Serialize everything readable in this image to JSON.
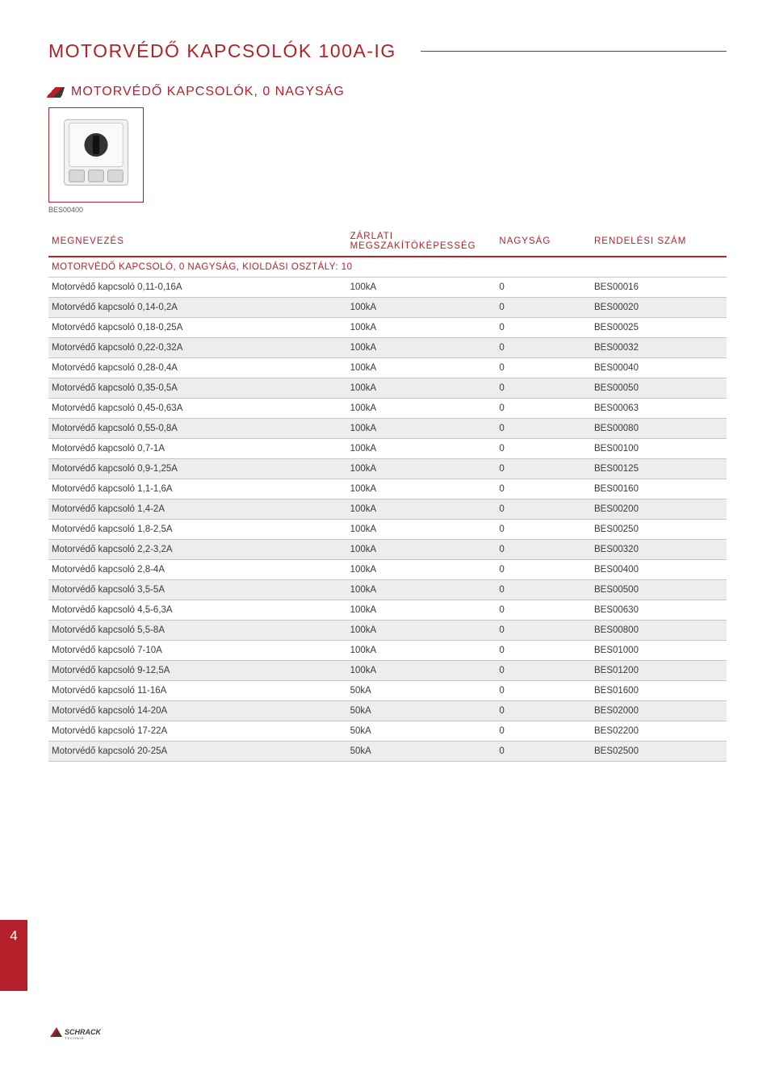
{
  "page": {
    "title": "MOTORVÉDŐ KAPCSOLÓK 100A-IG",
    "section_title": "MOTORVÉDŐ KAPCSOLÓK, 0 NAGYSÁG",
    "product_caption": "BES00400",
    "page_number": "4",
    "footer_brand": "SCHRACK",
    "footer_sub": "TECHNIK"
  },
  "table": {
    "headers": {
      "name": "MEGNEVEZÉS",
      "capacity": "ZÁRLATI MEGSZAKÍTÓKÉPESSÉG",
      "size": "NAGYSÁG",
      "order": "RENDELÉSI SZÁM"
    },
    "subheader": "MOTORVÉDŐ KAPCSOLÓ, 0 NAGYSÁG, KIOLDÁSI OSZTÁLY: 10",
    "rows": [
      {
        "name": "Motorvédő kapcsoló  0,11-0,16A",
        "capacity": "100kA",
        "size": "0",
        "order": "BES00016",
        "shaded": false
      },
      {
        "name": "Motorvédő kapcsoló 0,14-0,2A",
        "capacity": "100kA",
        "size": "0",
        "order": "BES00020",
        "shaded": true
      },
      {
        "name": "Motorvédő kapcsoló 0,18-0,25A",
        "capacity": "100kA",
        "size": "0",
        "order": "BES00025",
        "shaded": false
      },
      {
        "name": "Motorvédő kapcsoló 0,22-0,32A",
        "capacity": "100kA",
        "size": "0",
        "order": "BES00032",
        "shaded": true
      },
      {
        "name": "Motorvédő kapcsoló 0,28-0,4A",
        "capacity": "100kA",
        "size": "0",
        "order": "BES00040",
        "shaded": false
      },
      {
        "name": "Motorvédő kapcsoló 0,35-0,5A",
        "capacity": "100kA",
        "size": "0",
        "order": "BES00050",
        "shaded": true
      },
      {
        "name": "Motorvédő kapcsoló 0,45-0,63A",
        "capacity": "100kA",
        "size": "0",
        "order": "BES00063",
        "shaded": false
      },
      {
        "name": "Motorvédő kapcsoló 0,55-0,8A",
        "capacity": "100kA",
        "size": "0",
        "order": "BES00080",
        "shaded": true
      },
      {
        "name": "Motorvédő kapcsoló 0,7-1A",
        "capacity": "100kA",
        "size": "0",
        "order": "BES00100",
        "shaded": false
      },
      {
        "name": "Motorvédő kapcsoló 0,9-1,25A",
        "capacity": "100kA",
        "size": "0",
        "order": "BES00125",
        "shaded": true
      },
      {
        "name": "Motorvédő kapcsoló 1,1-1,6A",
        "capacity": "100kA",
        "size": "0",
        "order": "BES00160",
        "shaded": false
      },
      {
        "name": "Motorvédő kapcsoló 1,4-2A",
        "capacity": "100kA",
        "size": "0",
        "order": "BES00200",
        "shaded": true
      },
      {
        "name": "Motorvédő kapcsoló 1,8-2,5A",
        "capacity": "100kA",
        "size": "0",
        "order": "BES00250",
        "shaded": false
      },
      {
        "name": "Motorvédő kapcsoló 2,2-3,2A",
        "capacity": "100kA",
        "size": "0",
        "order": "BES00320",
        "shaded": true
      },
      {
        "name": "Motorvédő kapcsoló 2,8-4A",
        "capacity": "100kA",
        "size": "0",
        "order": "BES00400",
        "shaded": false
      },
      {
        "name": "Motorvédő kapcsoló 3,5-5A",
        "capacity": "100kA",
        "size": "0",
        "order": "BES00500",
        "shaded": true
      },
      {
        "name": "Motorvédő kapcsoló 4,5-6,3A",
        "capacity": "100kA",
        "size": "0",
        "order": "BES00630",
        "shaded": false
      },
      {
        "name": "Motorvédő kapcsoló 5,5-8A",
        "capacity": "100kA",
        "size": "0",
        "order": "BES00800",
        "shaded": true
      },
      {
        "name": "Motorvédő kapcsoló 7-10A",
        "capacity": "100kA",
        "size": "0",
        "order": "BES01000",
        "shaded": false
      },
      {
        "name": "Motorvédő kapcsoló 9-12,5A",
        "capacity": "100kA",
        "size": "0",
        "order": "BES01200",
        "shaded": true
      },
      {
        "name": "Motorvédő kapcsoló 11-16A",
        "capacity": "50kA",
        "size": "0",
        "order": "BES01600",
        "shaded": false
      },
      {
        "name": "Motorvédő kapcsoló 14-20A",
        "capacity": "50kA",
        "size": "0",
        "order": "BES02000",
        "shaded": true
      },
      {
        "name": "Motorvédő kapcsoló 17-22A",
        "capacity": "50kA",
        "size": "0",
        "order": "BES02200",
        "shaded": false
      },
      {
        "name": "Motorvédő kapcsoló 20-25A",
        "capacity": "50kA",
        "size": "0",
        "order": "BES02500",
        "shaded": true
      }
    ]
  },
  "colors": {
    "brand_red": "#b51f2a",
    "row_grey": "#ededed",
    "rule_grey": "#c7c7c7",
    "text": "#3a3a3a"
  }
}
